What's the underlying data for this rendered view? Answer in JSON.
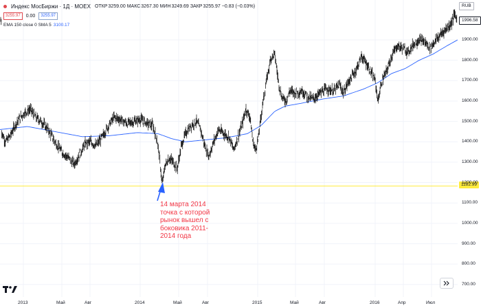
{
  "legend": {
    "title": "Индекс МосБиржи · 1Д · MOEX",
    "open_label": "ОТКР",
    "open": "3259.00",
    "high_label": "МАКС",
    "high": "3267.30",
    "low_label": "МИН",
    "low": "3249.69",
    "close_label": "ЗАКР",
    "close": "3255.97",
    "change": "−0.83 (−0.03%)",
    "bid": "3255.97",
    "spread": "0.00",
    "ask": "3255.97"
  },
  "indicator": {
    "label": "EMA 150 close 0 SMA 5",
    "value": "3100.17"
  },
  "annotation": {
    "lines": [
      "14 марта 2014",
      "точка с которой",
      "рынок  вышел с",
      "боковика 2011-",
      "2014 года"
    ]
  },
  "price_axis": {
    "currency": "RUB",
    "last_price": "1996.58",
    "line_price": "1182.99",
    "ticks": [
      "1900.00",
      "1800.00",
      "1700.00",
      "1600.00",
      "1500.00",
      "1400.00",
      "1300.00",
      "1200.00",
      "1100.00",
      "1000.00",
      "900.00",
      "800.00",
      "700.00"
    ]
  },
  "time_axis": {
    "ticks": [
      "2013",
      "Май",
      "Авг",
      "2014",
      "Май",
      "Авг",
      "2015",
      "Май",
      "Авг",
      "2016",
      "Апр",
      "Июл"
    ]
  },
  "colors": {
    "candles": "#000000",
    "ema": "#2962ff",
    "hline": "#ffeb3b",
    "annotation": "#f23645",
    "arrow": "#2962ff"
  },
  "chart_data": {
    "type": "line",
    "title": "Индекс МосБиржи · 1Д · MOEX",
    "ylim": [
      650,
      2050
    ],
    "x": [
      "2013",
      "Май",
      "Авг",
      "2014",
      "Май",
      "Авг",
      "2015",
      "Май",
      "Авг",
      "2016",
      "Апр",
      "Июл"
    ],
    "series": [
      {
        "name": "Индекс МосБиржи",
        "values": [
          1450,
          1380,
          1460,
          1490,
          1240,
          1470,
          1600,
          1670,
          1650,
          1660,
          1830,
          1990
        ]
      },
      {
        "name": "EMA 150 close 0 SMA 5",
        "values": [
          1460,
          1450,
          1425,
          1445,
          1425,
          1405,
          1470,
          1570,
          1615,
          1665,
          1760,
          1900
        ]
      }
    ],
    "hline": 1182.99
  }
}
